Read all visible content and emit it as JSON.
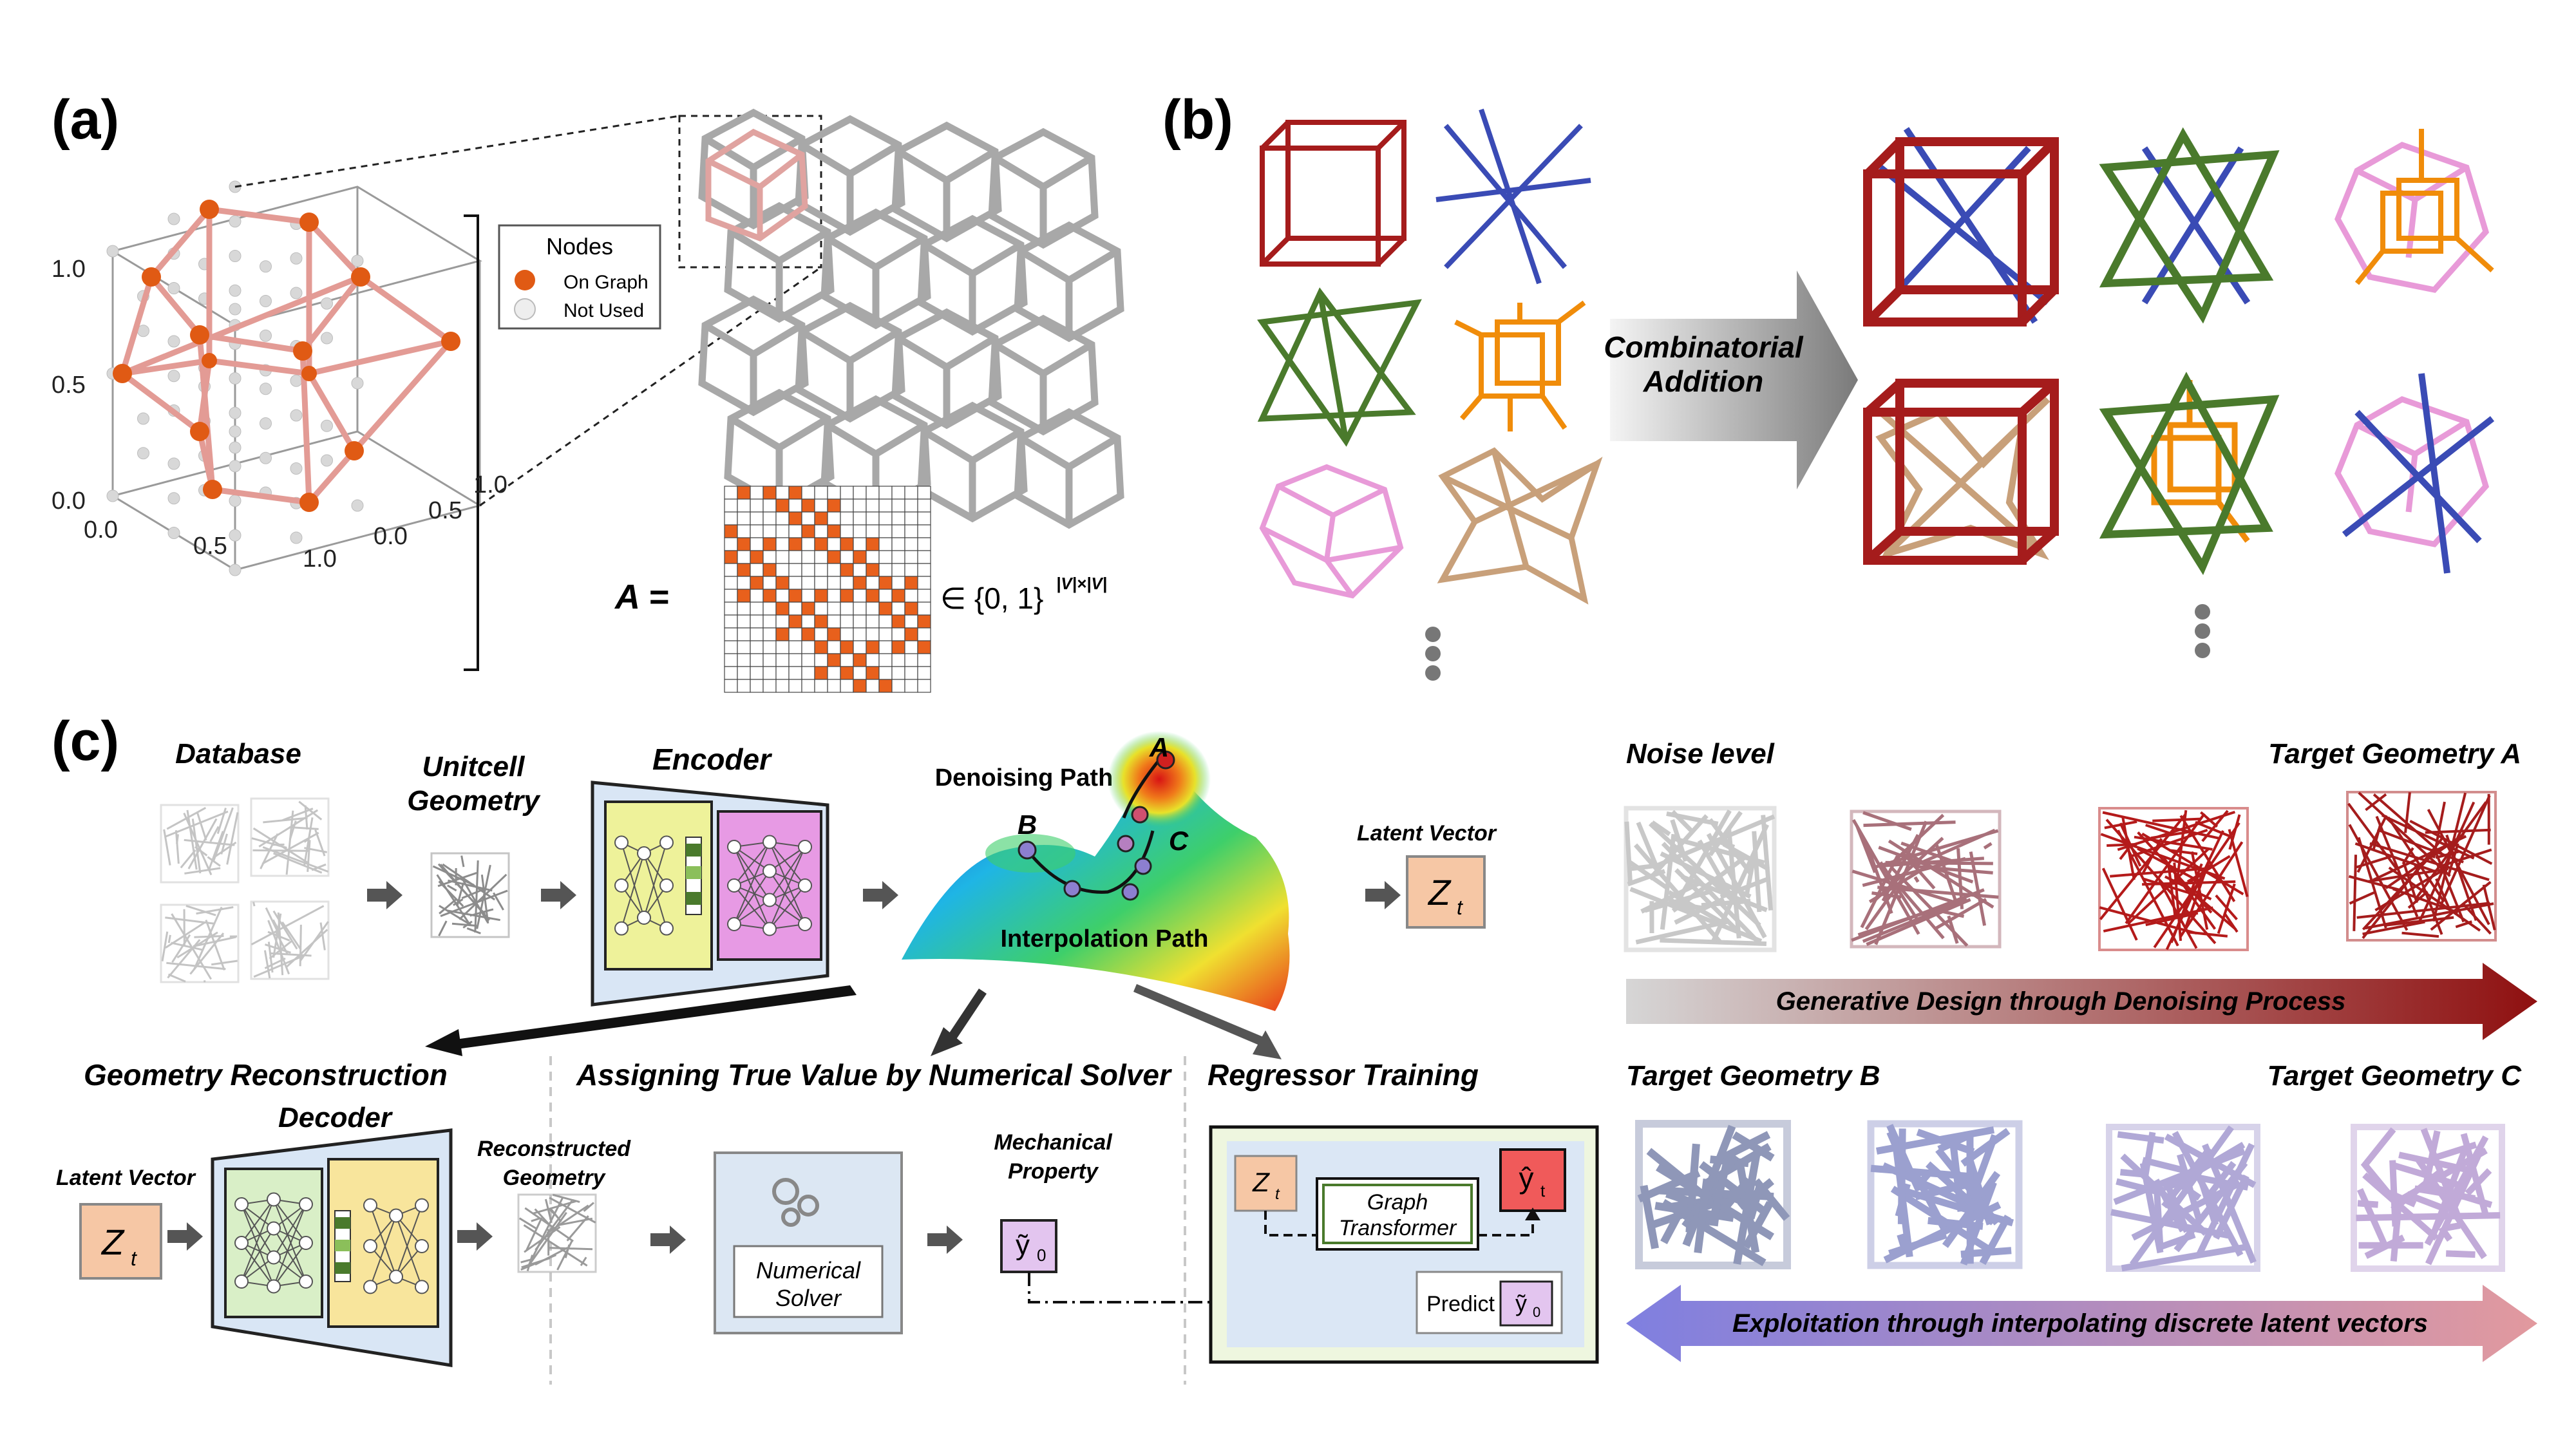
{
  "panel_labels": {
    "a": "(a)",
    "b": "(b)",
    "c": "(c)"
  },
  "panel_a": {
    "legend_title": "Nodes",
    "legend_items": [
      "On Graph",
      "Not Used"
    ],
    "ticks_z": [
      "0.0",
      "0.5",
      "1.0"
    ],
    "ticks_x": [
      "0.0",
      "0.5",
      "1.0"
    ],
    "ticks_y": [
      "0.0",
      "0.5",
      "1.0"
    ],
    "matrix_lhs": "A =",
    "matrix_rhs": "∈ {0, 1}",
    "matrix_rhs_sup": "|V|×|V|"
  },
  "panel_b": {
    "arrow_label_1": "Combinatorial",
    "arrow_label_2": "Addition"
  },
  "panel_c": {
    "database": "Database",
    "unitcell_1": "Unitcell",
    "unitcell_2": "Geometry",
    "encoder": "Encoder",
    "denoising_path": "Denoising Path",
    "interpolation_path": "Interpolation Path",
    "point_a": "A",
    "point_b": "B",
    "point_c": "C",
    "latent_vector_top": "Latent Vector",
    "zt": "Z",
    "zt_sub": "t",
    "noise_level": "Noise level",
    "target_a": "Target Geometry A",
    "target_b": "Target Geometry B",
    "target_c": "Target Geometry C",
    "banner_denoise": "Generative Design through Denoising Process",
    "banner_interp": "Exploitation through interpolating discrete latent vectors",
    "geom_recon": "Geometry Reconstruction",
    "decoder": "Decoder",
    "latent_vector_bottom": "Latent Vector",
    "recon_geom_1": "Reconstructed",
    "recon_geom_2": "Geometry",
    "assigning": "Assigning True Value by Numerical Solver",
    "numerical_1": "Numerical",
    "numerical_2": "Solver",
    "mech_1": "Mechanical",
    "mech_2": "Property",
    "y0": "ỹ",
    "y0_sub": "0",
    "regressor": "Regressor Training",
    "graph_1": "Graph",
    "graph_2": "Transformer",
    "yhat": "ŷ",
    "yhat_sub": "t",
    "predict": "Predict"
  },
  "colors": {
    "red_cube": "#a51c1c",
    "blue": "#3a4bb5",
    "green": "#4a7a2c",
    "orange": "#f08c0a",
    "pink": "#e89ad8",
    "tan": "#c8a07a",
    "node_orange": "#e05a14",
    "latent_box": "#f6c7a5",
    "encoder_yellow": "#eef29a",
    "encoder_magenta": "#e79ae4",
    "frame_blue": "#d9e6f5"
  }
}
